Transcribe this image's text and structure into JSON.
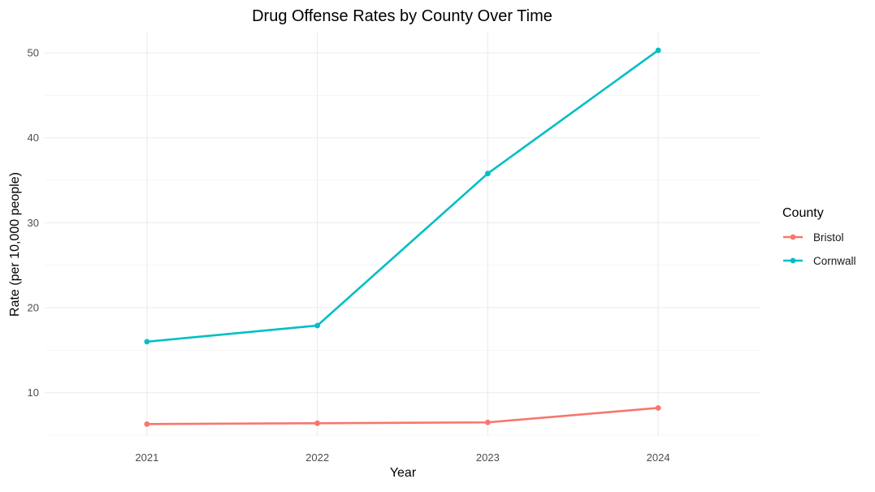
{
  "chart_data": {
    "type": "line",
    "title": "Drug Offense Rates by County Over Time",
    "xlabel": "Year",
    "ylabel": "Rate (per 10,000 people)",
    "x": [
      2021,
      2022,
      2023,
      2024
    ],
    "x_tick_labels": [
      "2021",
      "2022",
      "2023",
      "2024"
    ],
    "y_ticks": [
      10,
      20,
      30,
      40,
      50
    ],
    "ylim": [
      4.9,
      52.4
    ],
    "xlim": [
      2020.4,
      2024.6
    ],
    "grid": true,
    "legend": {
      "title": "County",
      "position": "right"
    },
    "series": [
      {
        "name": "Bristol",
        "color": "#F8766D",
        "values": [
          6.3,
          6.4,
          6.5,
          8.2
        ]
      },
      {
        "name": "Cornwall",
        "color": "#00BFC4",
        "values": [
          16.0,
          17.9,
          35.8,
          50.3
        ]
      }
    ]
  }
}
